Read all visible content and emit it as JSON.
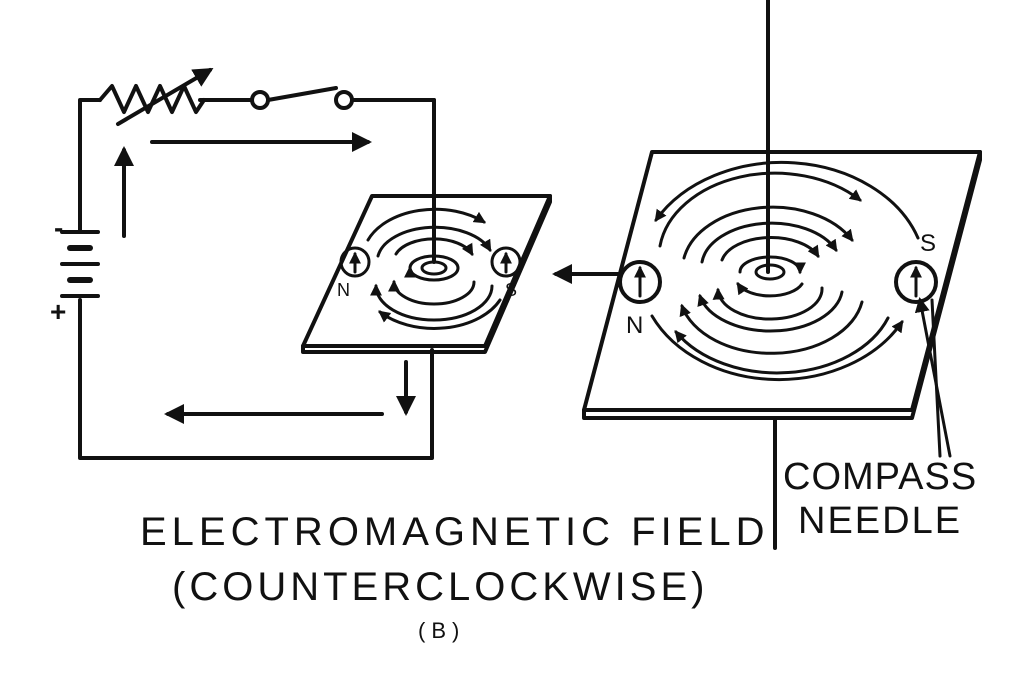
{
  "caption": {
    "title": "ELECTROMAGNETIC FIELD",
    "subtitle": "(COUNTERCLOCKWISE)",
    "figure_letter": "(B)"
  },
  "compass_label": {
    "line1": "COMPASS",
    "line2": "NEEDLE"
  },
  "small_plate": {
    "north_label": "N",
    "south_label": "S"
  },
  "large_plate": {
    "north_label": "N",
    "south_label": "S"
  },
  "battery": {
    "negative_label": "-",
    "positive_label": "+"
  }
}
